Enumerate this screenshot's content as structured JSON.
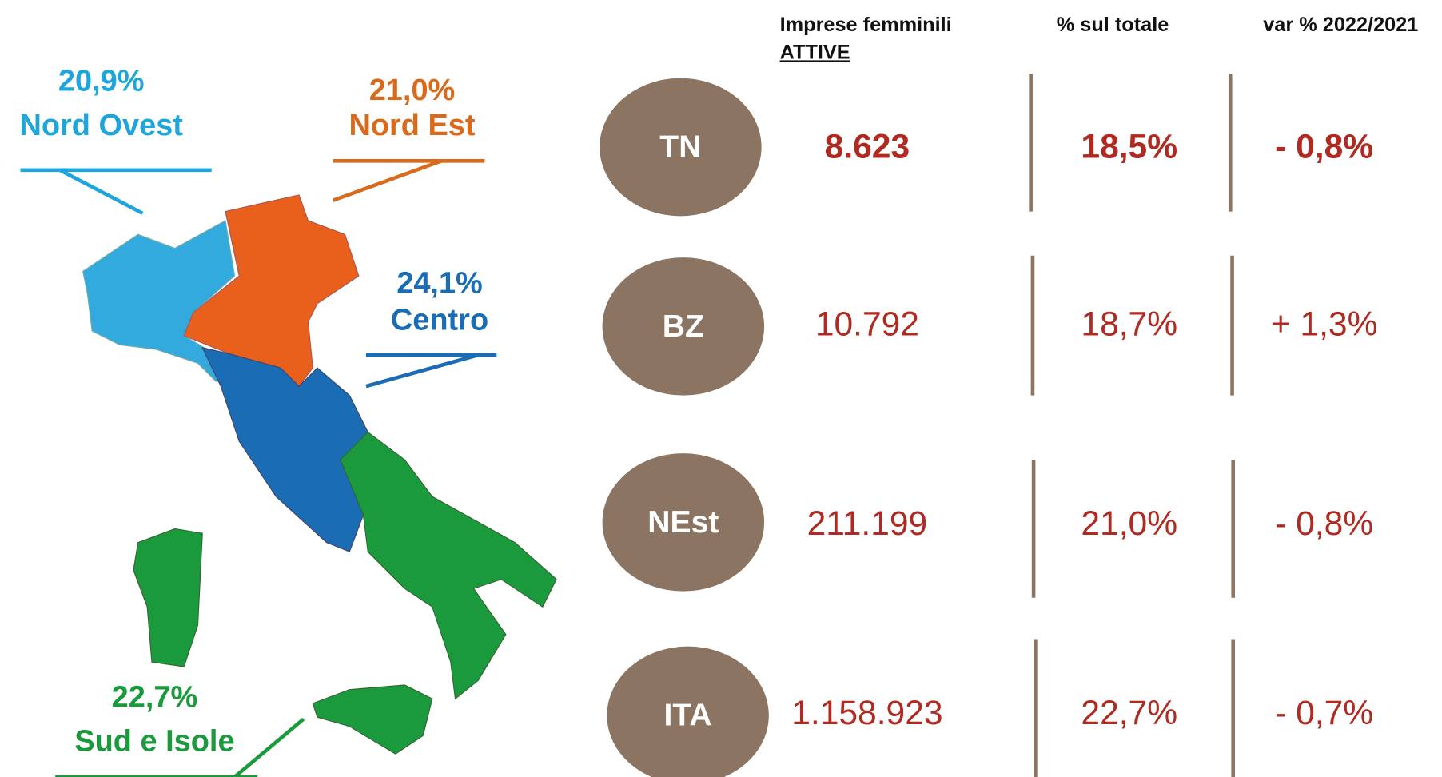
{
  "map": {
    "regions": [
      {
        "percent": "20,9%",
        "name": "Nord Ovest"
      },
      {
        "percent": "21,0%",
        "name": "Nord Est"
      },
      {
        "percent": "24,1%",
        "name": "Centro"
      },
      {
        "percent": "22,7%",
        "name": "Sud e Isole"
      }
    ]
  },
  "table": {
    "headers": [
      {
        "line1": "Imprese femminili",
        "line2": "ATTIVE"
      },
      "% sul totale",
      "var % 2022/2021"
    ],
    "rows": [
      [
        "TN",
        "8.623",
        "18,5%",
        "- 0,8%"
      ],
      [
        "BZ",
        "10.792",
        "18,7%",
        "+ 1,3%"
      ],
      [
        "NEst",
        "211.199",
        "21,0%",
        "- 0,8%"
      ],
      [
        "ITA",
        "1.158.923",
        "22,7%",
        "- 0,7%"
      ]
    ]
  }
}
